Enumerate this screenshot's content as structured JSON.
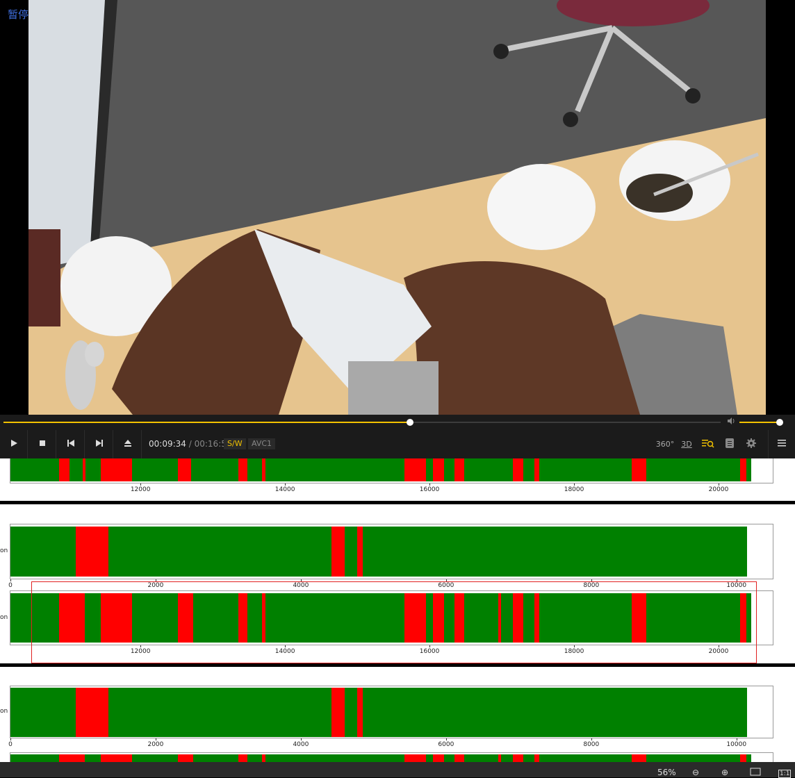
{
  "overlay": {
    "pause_label": "暂停"
  },
  "player": {
    "seek_progress": 0.567,
    "volume_level": 0.97,
    "current_time": "00:09:34",
    "time_separator": "/",
    "duration": "00:16:52",
    "decoder_badge": "S/W",
    "codec_badge": "AVC1",
    "right_controls": {
      "vr": "360°",
      "three_d": "3D"
    }
  },
  "colors": {
    "accent": "#f2c200",
    "segment_ok": "#008000",
    "segment_flag": "#ff0000",
    "highlight": "#e02020"
  },
  "icons": [
    "play-icon",
    "stop-icon",
    "previous-icon",
    "next-icon",
    "eject-icon",
    "volume-icon",
    "search-subtitle-icon",
    "playlist-icon",
    "settings-icon",
    "menu-icon"
  ],
  "status": {
    "zoom": "56%",
    "ratio": "1:1"
  },
  "ylabel_fragment": "on",
  "chart_data": [
    {
      "type": "bar",
      "description_of_encoding": "horizontal timeline of green/red segments",
      "xlim": [
        10200,
        20750
      ],
      "ticks": [
        12000,
        14000,
        16000,
        18000,
        20000
      ],
      "green_range": [
        10200,
        20450
      ],
      "red_segments": [
        [
          10870,
          11020
        ],
        [
          11200,
          11240
        ],
        [
          11450,
          11880
        ],
        [
          12520,
          12700
        ],
        [
          13350,
          13480
        ],
        [
          13680,
          13730
        ],
        [
          15650,
          15950
        ],
        [
          16050,
          16200
        ],
        [
          16350,
          16480
        ],
        [
          17150,
          17300
        ],
        [
          17450,
          17520
        ],
        [
          18800,
          19000
        ],
        [
          20300,
          20380
        ]
      ]
    },
    {
      "type": "bar",
      "xlim": [
        0,
        10500
      ],
      "ticks": [
        0,
        2000,
        4000,
        6000,
        8000,
        10000
      ],
      "green_range": [
        0,
        10150
      ],
      "red_segments": [
        [
          900,
          1350
        ],
        [
          4420,
          4600
        ],
        [
          4780,
          4850
        ]
      ]
    },
    {
      "type": "bar",
      "xlim": [
        10200,
        20750
      ],
      "ticks": [
        12000,
        14000,
        16000,
        18000,
        20000
      ],
      "green_range": [
        10200,
        20450
      ],
      "red_segments": [
        [
          10870,
          11230
        ],
        [
          11450,
          11880
        ],
        [
          12520,
          12730
        ],
        [
          13350,
          13480
        ],
        [
          13680,
          13730
        ],
        [
          15650,
          15950
        ],
        [
          16050,
          16200
        ],
        [
          16350,
          16480
        ],
        [
          16950,
          16990
        ],
        [
          17150,
          17300
        ],
        [
          17450,
          17520
        ],
        [
          18800,
          19000
        ],
        [
          20300,
          20380
        ]
      ]
    },
    {
      "type": "bar",
      "xlim": [
        0,
        10500
      ],
      "ticks": [
        0,
        2000,
        4000,
        6000,
        8000,
        10000
      ],
      "green_range": [
        0,
        10150
      ],
      "red_segments": [
        [
          900,
          1350
        ],
        [
          4420,
          4600
        ],
        [
          4780,
          4850
        ]
      ]
    },
    {
      "type": "bar",
      "xlim": [
        10200,
        20750
      ],
      "green_range": [
        10200,
        20450
      ],
      "red_segments": [
        [
          10870,
          11230
        ],
        [
          11450,
          11880
        ],
        [
          12520,
          12730
        ],
        [
          13350,
          13480
        ],
        [
          13680,
          13730
        ],
        [
          15650,
          15950
        ],
        [
          16050,
          16200
        ],
        [
          16350,
          16480
        ],
        [
          16950,
          16990
        ],
        [
          17150,
          17300
        ],
        [
          17450,
          17520
        ],
        [
          18800,
          19000
        ],
        [
          20300,
          20380
        ]
      ]
    }
  ]
}
